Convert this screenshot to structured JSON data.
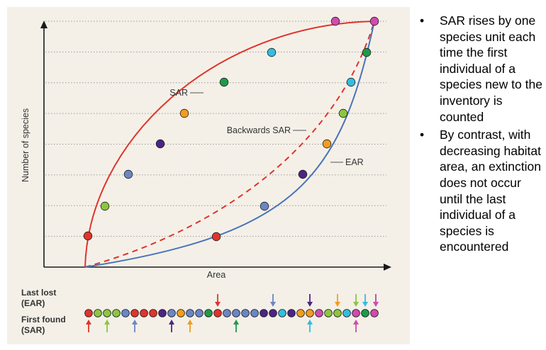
{
  "diagram": {
    "y_axis_label": "Number of species",
    "x_axis_label": "Area",
    "curve_labels": {
      "sar": "SAR",
      "backwards_sar": "Backwards SAR",
      "ear": "EAR"
    },
    "colors": {
      "panel_bg": "#f4f0e8",
      "sar_curve": "#e0342b",
      "ear_curve": "#4a74b8",
      "axis": "#1a1a1a",
      "grid": "#9a9a9a"
    },
    "species_colors": [
      "#e0342b",
      "#8cc63f",
      "#6b86c4",
      "#4b2585",
      "#f39c1f",
      "#1e9a4a",
      "#33bde0",
      "#d14ab0"
    ],
    "sar_points_species_order": [
      0,
      1,
      2,
      3,
      4,
      5,
      6,
      7
    ],
    "ear_points_species_order": [
      0,
      2,
      3,
      4,
      1,
      6,
      5,
      7
    ],
    "bottom_strip": {
      "last_lost_label": "Last lost",
      "last_lost_sub": "(EAR)",
      "first_found_label": "First found",
      "first_found_sub": "(SAR)",
      "individuals_species_sequence": [
        0,
        1,
        1,
        1,
        2,
        0,
        0,
        0,
        3,
        2,
        4,
        2,
        2,
        5,
        0,
        2,
        2,
        2,
        2,
        3,
        3,
        6,
        3,
        4,
        4,
        7,
        1,
        1,
        6,
        7,
        5,
        7
      ],
      "last_lost_arrows": [
        {
          "index": 14,
          "species": 0
        },
        {
          "index": 20,
          "species": 2
        },
        {
          "index": 24,
          "species": 3
        },
        {
          "index": 27,
          "species": 4
        },
        {
          "index": 29,
          "species": 1
        },
        {
          "index": 30,
          "species": 6
        },
        {
          "index": 32,
          "species": 5
        },
        {
          "index": 33,
          "species": 7
        }
      ],
      "first_found_arrows": [
        {
          "index": 0,
          "species": 0
        },
        {
          "index": 2,
          "species": 1
        },
        {
          "index": 5,
          "species": 2
        },
        {
          "index": 9,
          "species": 3
        },
        {
          "index": 11,
          "species": 4
        },
        {
          "index": 16,
          "species": 5
        },
        {
          "index": 24,
          "species": 6
        },
        {
          "index": 29,
          "species": 7
        }
      ]
    }
  },
  "bullets": [
    {
      "marker": "•",
      "text": "SAR rises by one species unit each time the first individual of a species new to the inventory is counted"
    },
    {
      "marker": "•",
      "text": "By contrast, with decreasing habitat area, an extinction does not occur until the last individual of a species is encountered"
    }
  ]
}
